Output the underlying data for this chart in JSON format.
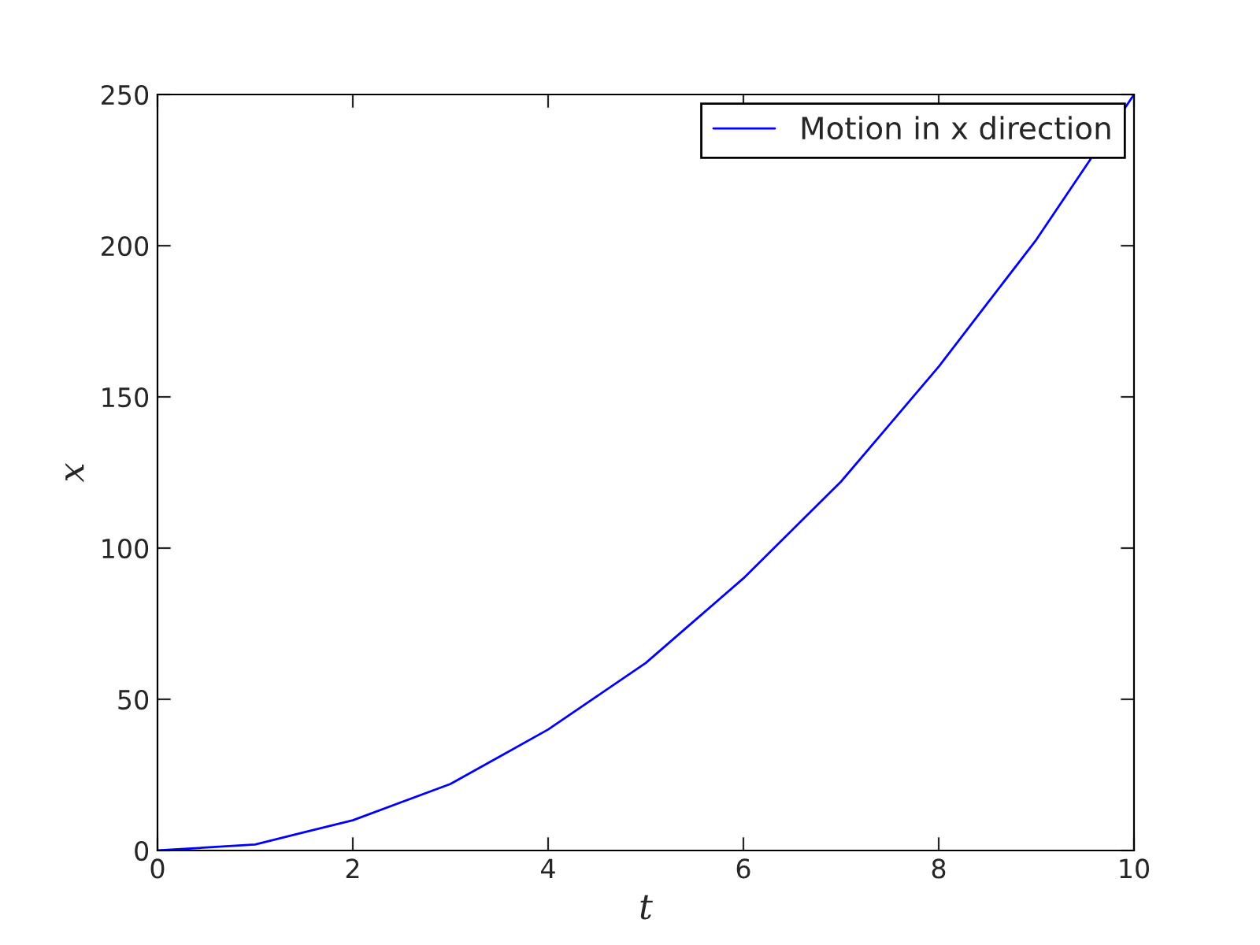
{
  "chart_data": {
    "type": "line",
    "xlabel": "t",
    "ylabel": "x",
    "x": [
      0,
      0.5,
      1,
      1.5,
      2,
      2.5,
      3,
      3.5,
      4,
      4.5,
      5,
      5.5,
      6,
      6.5,
      7,
      7.5,
      8,
      8.5,
      9,
      9.5,
      10
    ],
    "series": [
      {
        "name": "Motion in x direction",
        "color": "#0000ff",
        "values": [
          0,
          1,
          2,
          6,
          10,
          16,
          22,
          31,
          40,
          51,
          62,
          76,
          90,
          106,
          122,
          141,
          160,
          181,
          202,
          226,
          250
        ]
      }
    ],
    "xlim": [
      0,
      10
    ],
    "ylim": [
      0,
      250
    ],
    "xticks": [
      0,
      2,
      4,
      6,
      8,
      10
    ],
    "yticks": [
      0,
      50,
      100,
      150,
      200,
      250
    ],
    "legend": "top right",
    "grid": false,
    "marker": "none",
    "line_style": "solid"
  }
}
